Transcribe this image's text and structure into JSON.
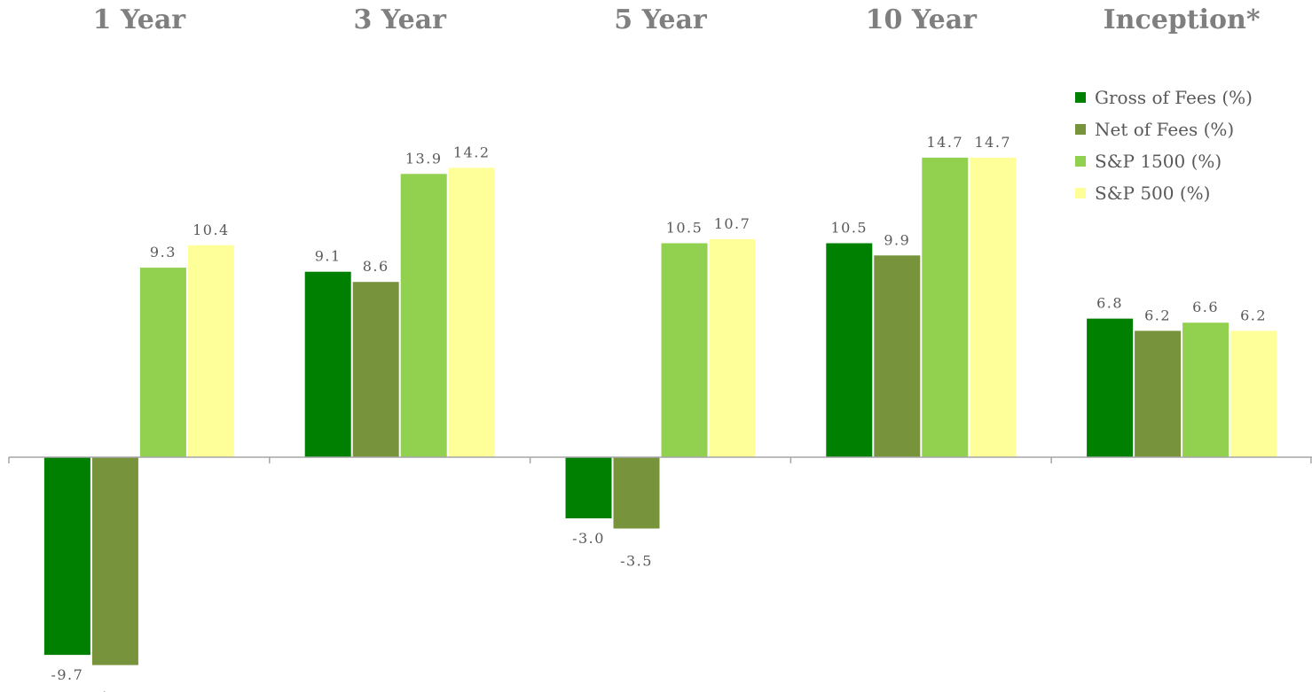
{
  "chart_data": {
    "type": "bar",
    "categories": [
      "1 Year",
      "3 Year",
      "5 Year",
      "10 Year",
      "Inception*"
    ],
    "series": [
      {
        "name": "Gross of Fees (%)",
        "color": "#008000",
        "values": [
          -9.7,
          9.1,
          -3.0,
          10.5,
          6.8
        ]
      },
      {
        "name": "Net of Fees (%)",
        "color": "#77933c",
        "values": [
          -10.2,
          8.6,
          -3.5,
          9.9,
          6.2
        ]
      },
      {
        "name": "S&P 1500 (%)",
        "color": "#92d050",
        "values": [
          9.3,
          13.9,
          10.5,
          14.7,
          6.6
        ]
      },
      {
        "name": "S&P 500 (%)",
        "color": "#ffff99",
        "values": [
          10.4,
          14.2,
          10.7,
          14.7,
          6.2
        ]
      }
    ],
    "title": "",
    "xlabel": "",
    "ylabel": "",
    "ylim": [
      -10.2,
      14.7
    ],
    "grid": false,
    "legend": "top-right",
    "category_labels_position": "top"
  }
}
